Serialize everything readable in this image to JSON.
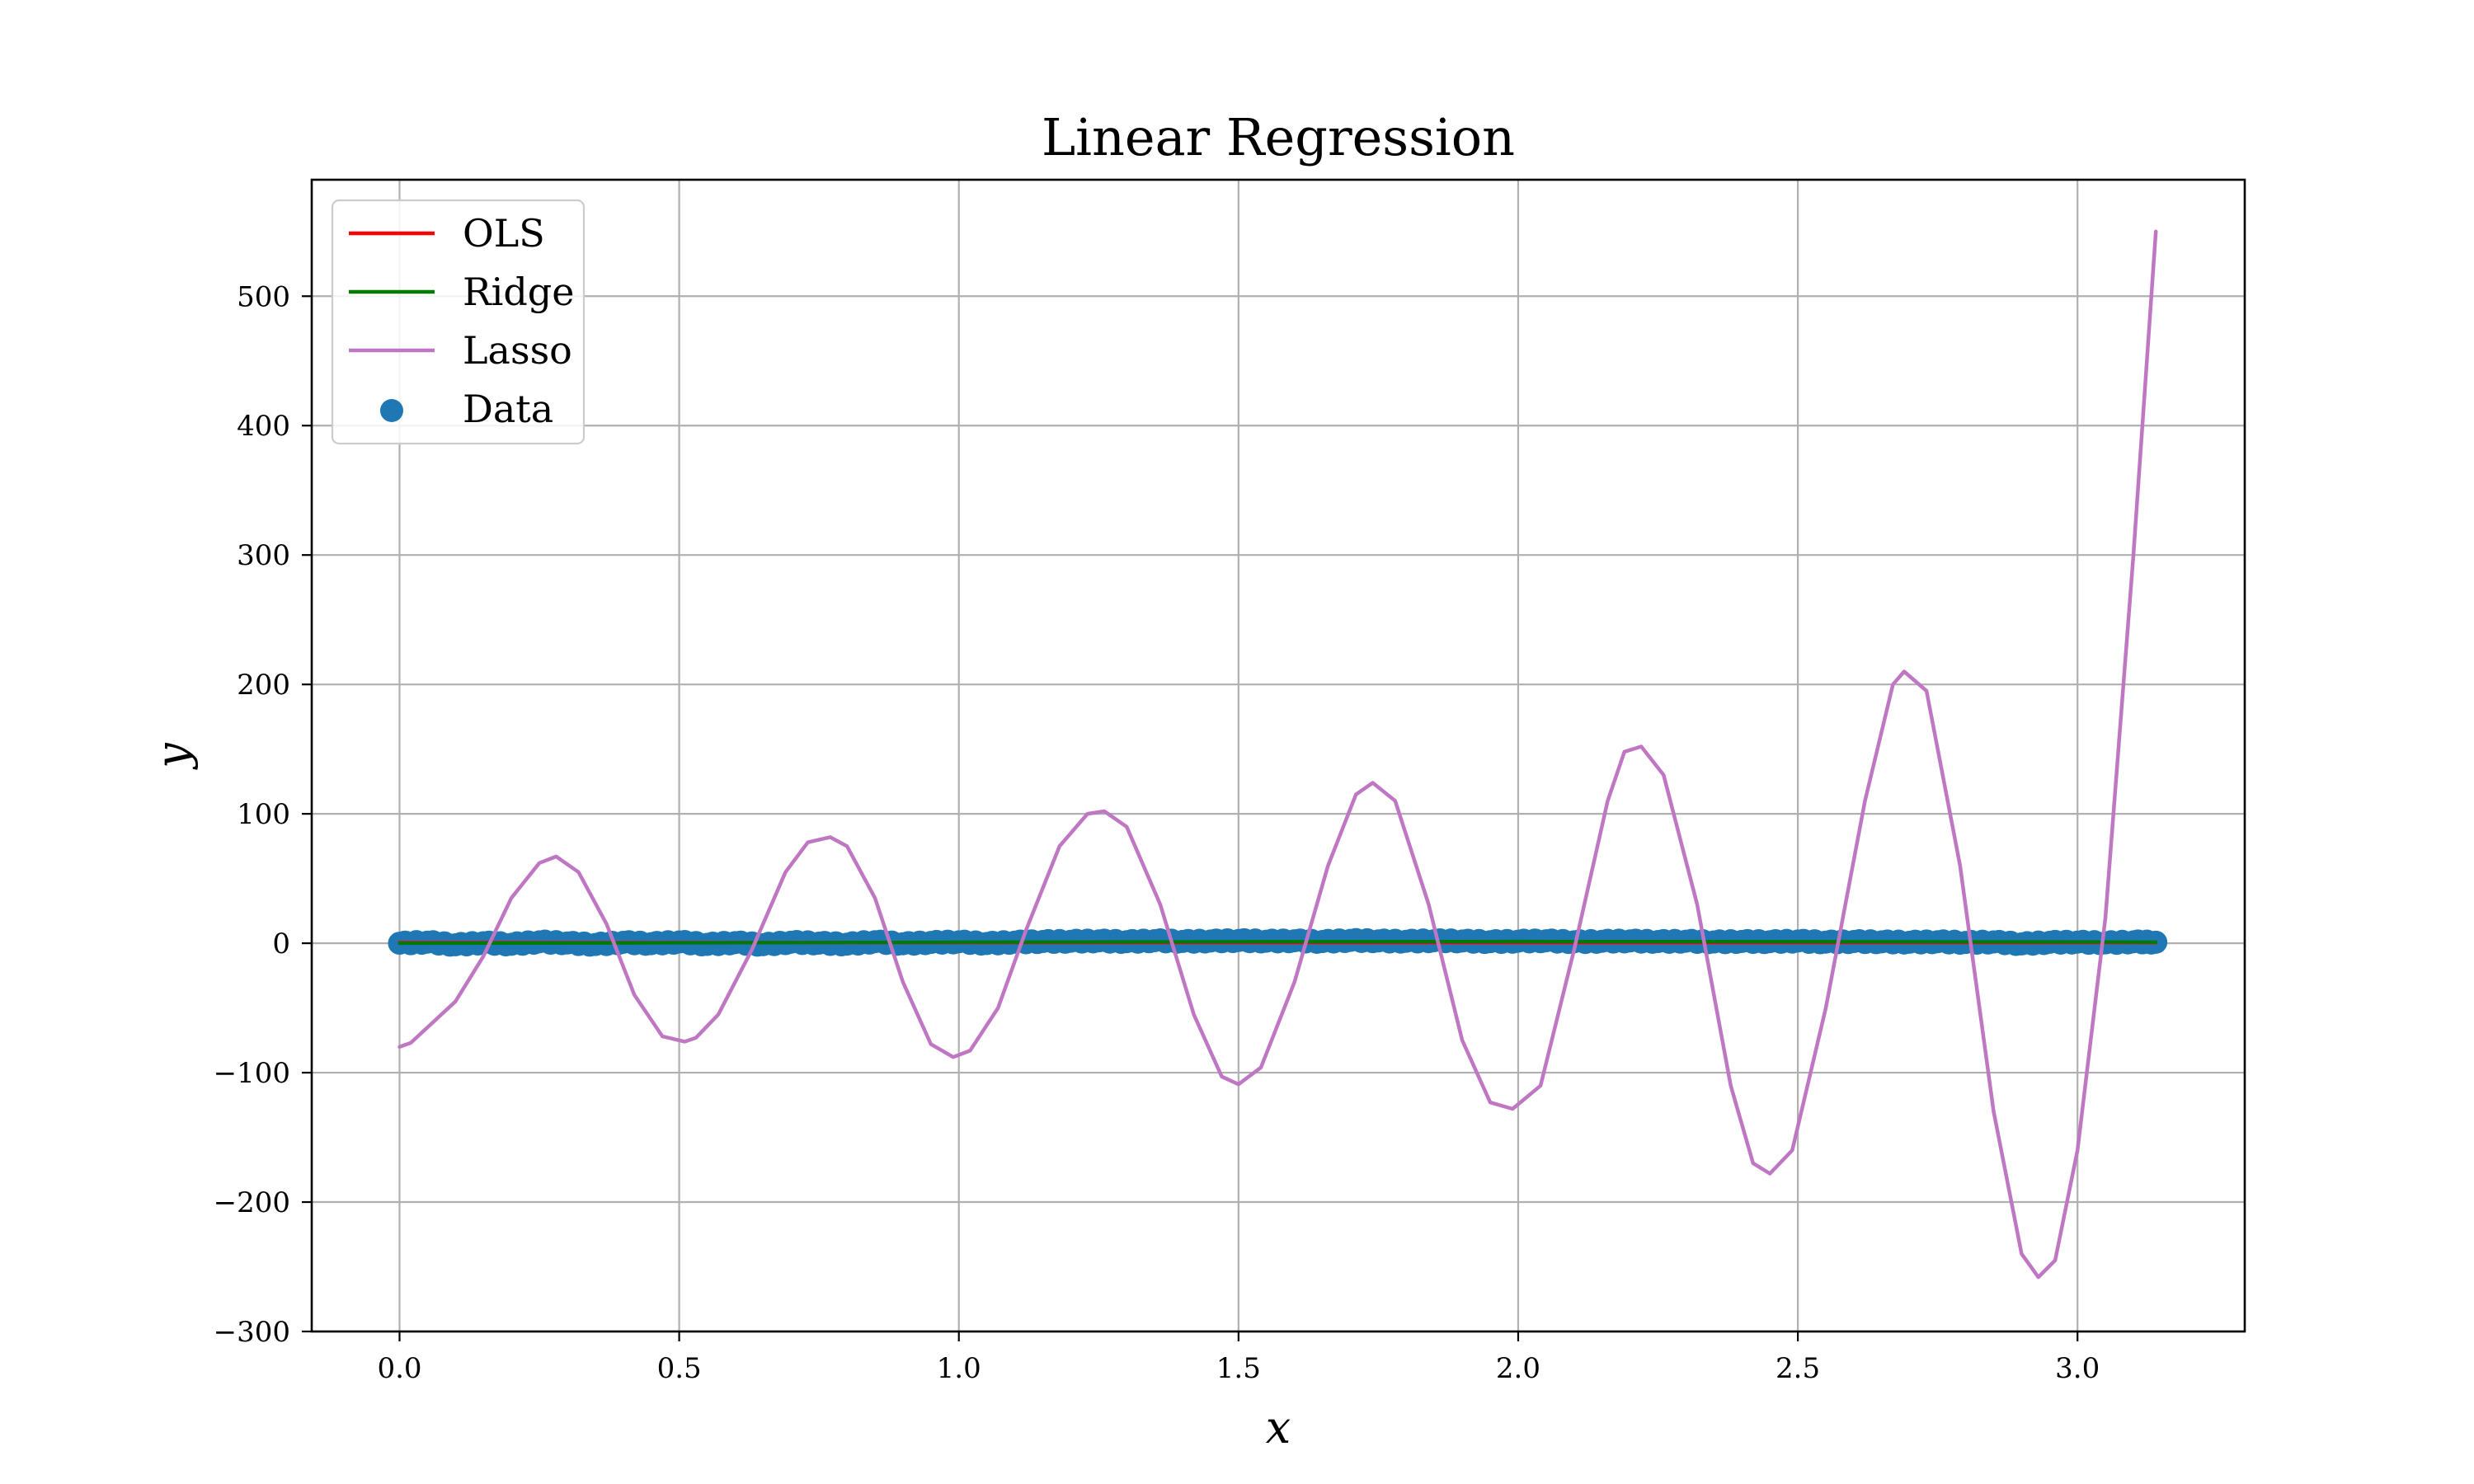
{
  "chart_data": {
    "type": "line",
    "title": "Linear Regression",
    "xlabel": "x",
    "ylabel": "y",
    "xlim": [
      -0.157,
      3.299
    ],
    "ylim": [
      -300,
      590
    ],
    "x_ticks": [
      0.0,
      0.5,
      1.0,
      1.5,
      2.0,
      2.5,
      3.0
    ],
    "x_tick_labels": [
      "0.0",
      "0.5",
      "1.0",
      "1.5",
      "2.0",
      "2.5",
      "3.0"
    ],
    "y_ticks": [
      -300,
      -200,
      -100,
      0,
      100,
      200,
      300,
      400,
      500
    ],
    "y_tick_labels": [
      "−300",
      "−200",
      "−100",
      "0",
      "100",
      "200",
      "300",
      "400",
      "500"
    ],
    "grid": true,
    "legend": {
      "placement": "top-left",
      "entries": [
        "OLS",
        "Ridge",
        "Lasso",
        "Data"
      ]
    },
    "colors": {
      "OLS": "#ff0000",
      "Ridge": "#007a00",
      "Lasso": "#bf77c4",
      "Data": "#1f77b4"
    },
    "series": [
      {
        "name": "OLS",
        "kind": "line",
        "x": [
          0.0,
          3.14
        ],
        "y": [
          0.5,
          0.5
        ]
      },
      {
        "name": "Ridge",
        "kind": "line",
        "x": [
          0.0,
          0.5,
          1.0,
          1.5,
          2.0,
          2.5,
          3.0,
          3.14
        ],
        "y": [
          0.0,
          0.3,
          0.8,
          1.2,
          1.4,
          1.3,
          1.0,
          0.9
        ]
      },
      {
        "name": "Lasso",
        "kind": "line",
        "x": [
          0.0,
          0.02,
          0.05,
          0.1,
          0.15,
          0.2,
          0.25,
          0.28,
          0.32,
          0.37,
          0.42,
          0.47,
          0.51,
          0.53,
          0.57,
          0.63,
          0.69,
          0.73,
          0.77,
          0.8,
          0.85,
          0.9,
          0.95,
          0.99,
          1.02,
          1.07,
          1.12,
          1.18,
          1.23,
          1.26,
          1.3,
          1.36,
          1.42,
          1.47,
          1.5,
          1.54,
          1.6,
          1.66,
          1.71,
          1.74,
          1.78,
          1.84,
          1.9,
          1.95,
          1.99,
          2.04,
          2.1,
          2.16,
          2.19,
          2.22,
          2.26,
          2.32,
          2.38,
          2.42,
          2.45,
          2.49,
          2.55,
          2.62,
          2.67,
          2.69,
          2.73,
          2.79,
          2.85,
          2.9,
          2.93,
          2.96,
          3.0,
          3.05,
          3.1,
          3.14
        ],
        "y": [
          -80,
          -77,
          -65,
          -45,
          -10,
          35,
          62,
          67,
          55,
          15,
          -40,
          -72,
          -76,
          -73,
          -55,
          -5,
          55,
          78,
          82,
          75,
          35,
          -30,
          -78,
          -88,
          -83,
          -50,
          10,
          75,
          100,
          102,
          90,
          30,
          -55,
          -103,
          -109,
          -96,
          -30,
          60,
          115,
          124,
          110,
          30,
          -75,
          -123,
          -128,
          -110,
          -5,
          110,
          148,
          152,
          130,
          30,
          -110,
          -170,
          -178,
          -160,
          -50,
          110,
          200,
          210,
          195,
          60,
          -130,
          -240,
          -258,
          -245,
          -160,
          20,
          300,
          550
        ]
      },
      {
        "name": "Data",
        "kind": "scatter",
        "x": [
          0.0,
          0.05,
          0.1,
          0.15,
          0.2,
          0.25,
          0.3,
          0.35,
          0.4,
          0.45,
          0.5,
          0.55,
          0.6,
          0.65,
          0.7,
          0.75,
          0.8,
          0.85,
          0.9,
          0.95,
          1.0,
          1.05,
          1.1,
          1.15,
          1.2,
          1.25,
          1.3,
          1.35,
          1.4,
          1.45,
          1.5,
          1.55,
          1.6,
          1.65,
          1.7,
          1.75,
          1.8,
          1.85,
          1.9,
          1.95,
          2.0,
          2.05,
          2.1,
          2.15,
          2.2,
          2.25,
          2.3,
          2.35,
          2.4,
          2.45,
          2.5,
          2.55,
          2.6,
          2.65,
          2.7,
          2.75,
          2.8,
          2.85,
          2.9,
          2.95,
          3.0,
          3.05,
          3.1,
          3.14
        ],
        "y": [
          0.0,
          0.9,
          -1.2,
          0.4,
          -0.8,
          1.1,
          0.2,
          -1.0,
          0.7,
          -0.3,
          1.0,
          -0.9,
          0.5,
          -1.1,
          0.8,
          0.1,
          -0.7,
          1.2,
          -0.4,
          0.6,
          1.1,
          -0.2,
          0.9,
          1.3,
          1.5,
          1.8,
          1.2,
          2.0,
          1.4,
          1.7,
          2.1,
          1.6,
          1.9,
          1.3,
          2.2,
          1.8,
          1.5,
          2.0,
          1.7,
          1.2,
          1.6,
          1.9,
          1.1,
          1.5,
          1.8,
          1.3,
          1.6,
          1.0,
          1.4,
          1.2,
          1.7,
          0.9,
          1.3,
          1.1,
          0.8,
          1.2,
          0.6,
          1.0,
          -0.5,
          0.7,
          0.9,
          0.3,
          1.1,
          0.8
        ]
      }
    ]
  }
}
